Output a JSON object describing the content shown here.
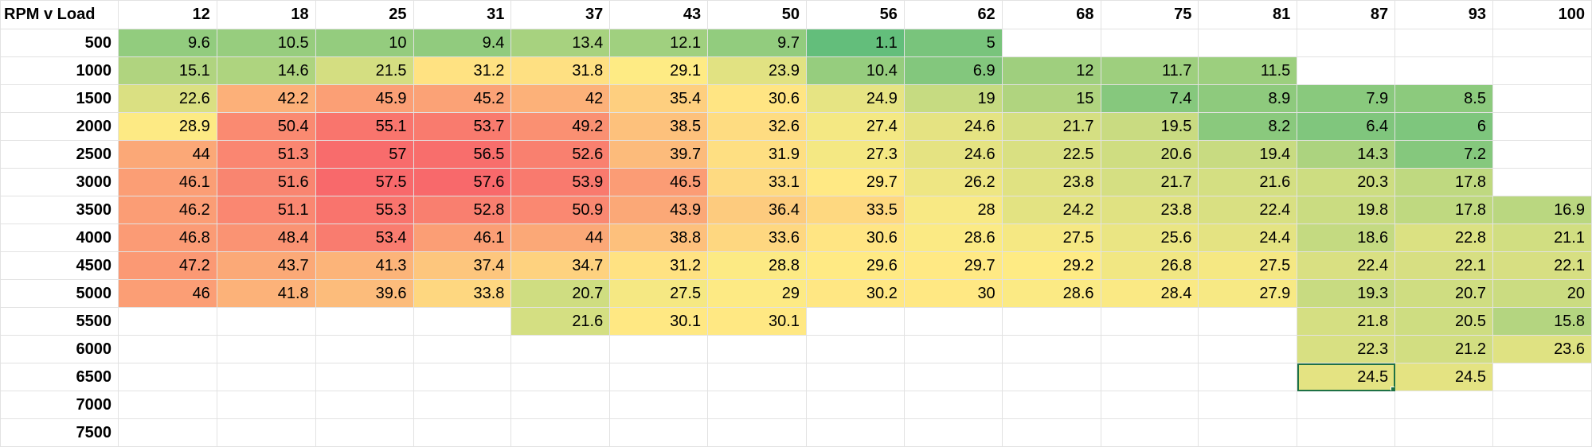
{
  "sheet": {
    "corner_label": "RPM v Load",
    "column_headers": [
      "12",
      "18",
      "25",
      "31",
      "37",
      "43",
      "50",
      "56",
      "62",
      "68",
      "75",
      "81",
      "87",
      "93",
      "100"
    ],
    "rows": [
      {
        "rpm": "500",
        "values": [
          "9.6",
          "10.5",
          "10",
          "9.4",
          "13.4",
          "12.1",
          "9.7",
          "1.1",
          "5",
          "",
          "",
          "",
          "",
          "",
          ""
        ]
      },
      {
        "rpm": "1000",
        "values": [
          "15.1",
          "14.6",
          "21.5",
          "31.2",
          "31.8",
          "29.1",
          "23.9",
          "10.4",
          "6.9",
          "12",
          "11.7",
          "11.5",
          "",
          "",
          ""
        ]
      },
      {
        "rpm": "1500",
        "values": [
          "22.6",
          "42.2",
          "45.9",
          "45.2",
          "42",
          "35.4",
          "30.6",
          "24.9",
          "19",
          "15",
          "7.4",
          "8.9",
          "7.9",
          "8.5",
          ""
        ]
      },
      {
        "rpm": "2000",
        "values": [
          "28.9",
          "50.4",
          "55.1",
          "53.7",
          "49.2",
          "38.5",
          "32.6",
          "27.4",
          "24.6",
          "21.7",
          "19.5",
          "8.2",
          "6.4",
          "6",
          ""
        ]
      },
      {
        "rpm": "2500",
        "values": [
          "44",
          "51.3",
          "57",
          "56.5",
          "52.6",
          "39.7",
          "31.9",
          "27.3",
          "24.6",
          "22.5",
          "20.6",
          "19.4",
          "14.3",
          "7.2",
          ""
        ]
      },
      {
        "rpm": "3000",
        "values": [
          "46.1",
          "51.6",
          "57.5",
          "57.6",
          "53.9",
          "46.5",
          "33.1",
          "29.7",
          "26.2",
          "23.8",
          "21.7",
          "21.6",
          "20.3",
          "17.8",
          ""
        ]
      },
      {
        "rpm": "3500",
        "values": [
          "46.2",
          "51.1",
          "55.3",
          "52.8",
          "50.9",
          "43.9",
          "36.4",
          "33.5",
          "28",
          "24.2",
          "23.8",
          "22.4",
          "19.8",
          "17.8",
          "16.9"
        ]
      },
      {
        "rpm": "4000",
        "values": [
          "46.8",
          "48.4",
          "53.4",
          "46.1",
          "44",
          "38.8",
          "33.6",
          "30.6",
          "28.6",
          "27.5",
          "25.6",
          "24.4",
          "18.6",
          "22.8",
          "21.1"
        ]
      },
      {
        "rpm": "4500",
        "values": [
          "47.2",
          "43.7",
          "41.3",
          "37.4",
          "34.7",
          "31.2",
          "28.8",
          "29.6",
          "29.7",
          "29.2",
          "26.8",
          "27.5",
          "22.4",
          "22.1",
          "22.1"
        ]
      },
      {
        "rpm": "5000",
        "values": [
          "46",
          "41.8",
          "39.6",
          "33.8",
          "20.7",
          "27.5",
          "29",
          "30.2",
          "30",
          "28.6",
          "28.4",
          "27.9",
          "19.3",
          "20.7",
          "20"
        ]
      },
      {
        "rpm": "5500",
        "values": [
          "",
          "",
          "",
          "",
          "21.6",
          "30.1",
          "30.1",
          "",
          "",
          "",
          "",
          "",
          "21.8",
          "20.5",
          "15.8"
        ]
      },
      {
        "rpm": "6000",
        "values": [
          "",
          "",
          "",
          "",
          "",
          "",
          "",
          "",
          "",
          "",
          "",
          "",
          "22.3",
          "21.2",
          "23.6"
        ]
      },
      {
        "rpm": "6500",
        "values": [
          "",
          "",
          "",
          "",
          "",
          "",
          "",
          "",
          "",
          "",
          "",
          "",
          "24.5",
          "24.5",
          ""
        ]
      },
      {
        "rpm": "7000",
        "values": [
          "",
          "",
          "",
          "",
          "",
          "",
          "",
          "",
          "",
          "",
          "",
          "",
          "",
          "",
          ""
        ]
      },
      {
        "rpm": "7500",
        "values": [
          "",
          "",
          "",
          "",
          "",
          "",
          "",
          "",
          "",
          "",
          "",
          "",
          "",
          "",
          ""
        ]
      }
    ],
    "selected_cell": {
      "row": 12,
      "col": 12
    },
    "color_scale": {
      "low": "#63be7b",
      "mid": "#ffeb84",
      "high": "#f8696b",
      "min": 1.1,
      "mid_value": 29.35,
      "max": 57.6
    }
  }
}
